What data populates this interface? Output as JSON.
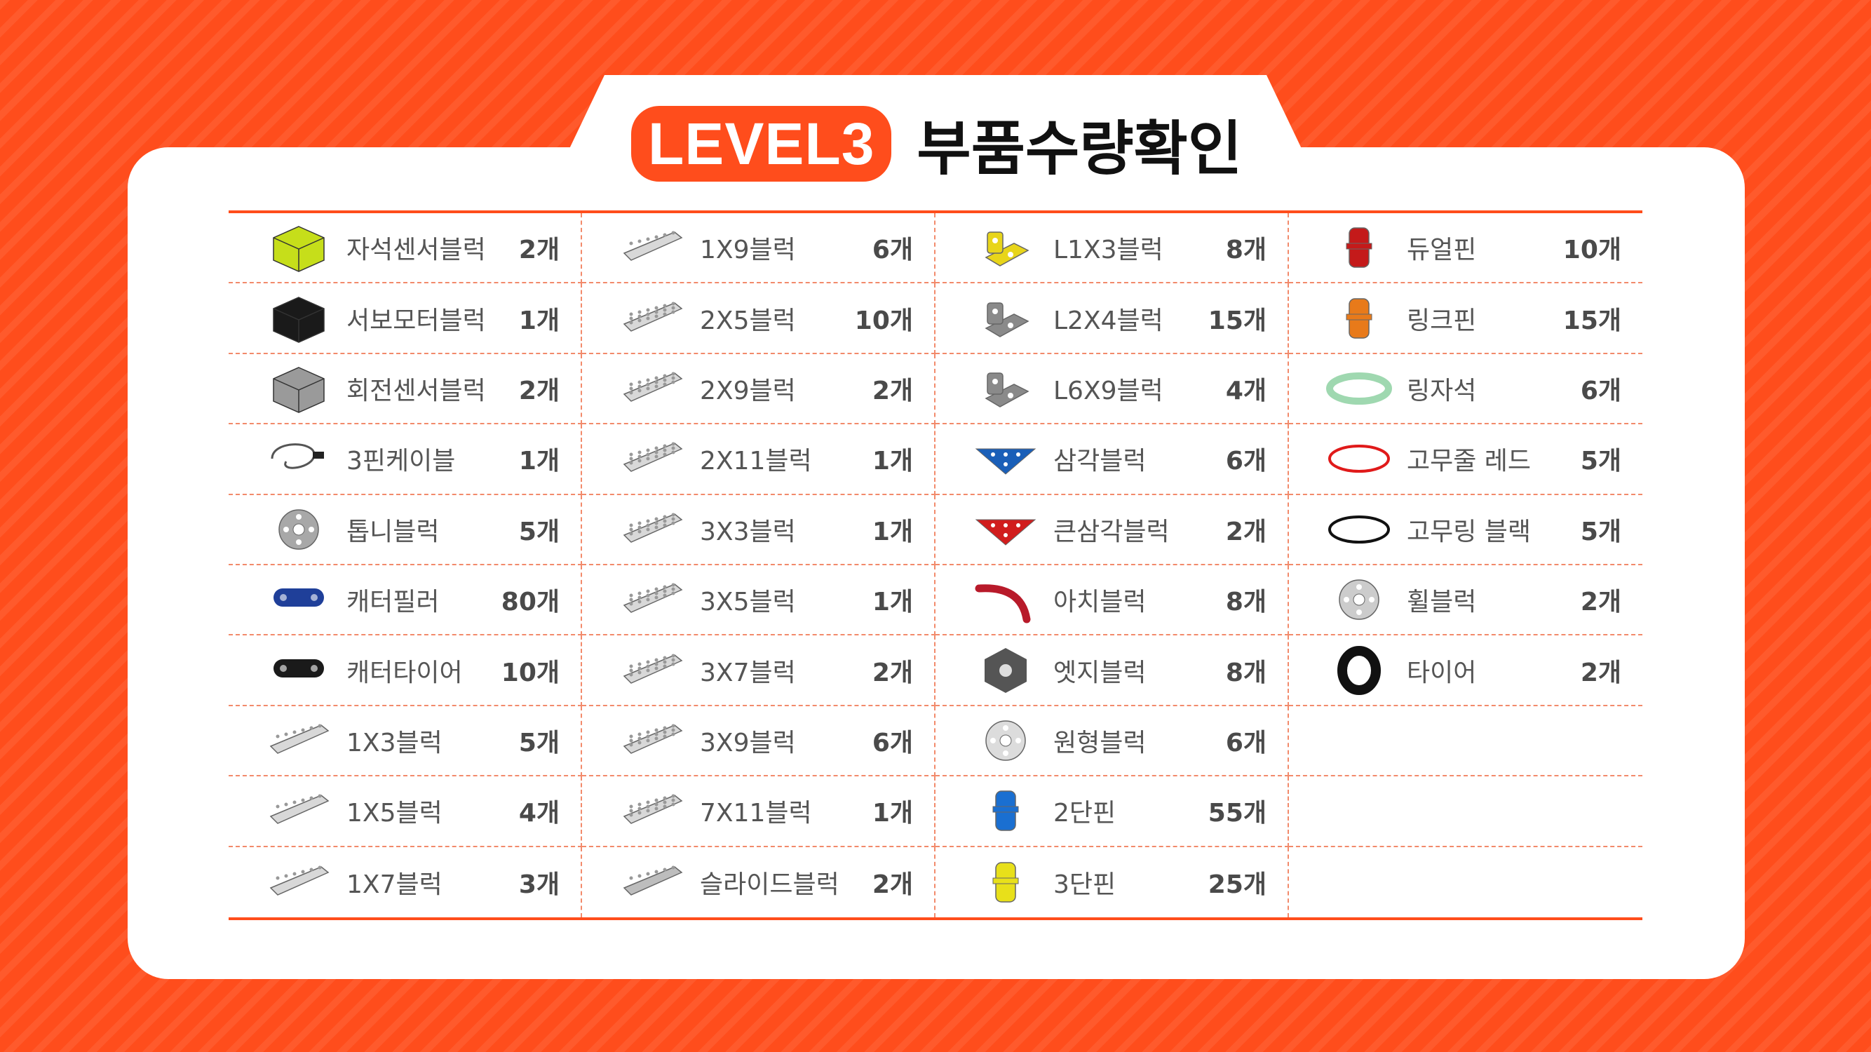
{
  "title": {
    "level": "LEVEL3",
    "text": "부품수량확인"
  },
  "columns": [
    [
      {
        "name": "자석센서블럭",
        "qty": "2개",
        "icon": "magnet-sensor-block-icon",
        "color": "#c6de1a"
      },
      {
        "name": "서보모터블럭",
        "qty": "1개",
        "icon": "servo-motor-block-icon",
        "color": "#1a1a1a"
      },
      {
        "name": "회전센서블럭",
        "qty": "2개",
        "icon": "rotation-sensor-block-icon",
        "color": "#9a9a9a"
      },
      {
        "name": "3핀케이블",
        "qty": "1개",
        "icon": "pin-cable-icon",
        "color": "#555555"
      },
      {
        "name": "톱니블럭",
        "qty": "5개",
        "icon": "gear-block-icon",
        "color": "#a8a8a8"
      },
      {
        "name": "캐터필러",
        "qty": "80개",
        "icon": "caterpillar-icon",
        "color": "#1f3f99"
      },
      {
        "name": "캐터타이어",
        "qty": "10개",
        "icon": "caterpillar-tire-icon",
        "color": "#1a1a1a"
      },
      {
        "name": "1X3블럭",
        "qty": "5개",
        "icon": "beam-1x3-icon",
        "color": "#d8d8d8"
      },
      {
        "name": "1X5블럭",
        "qty": "4개",
        "icon": "beam-1x5-icon",
        "color": "#d8d8d8"
      },
      {
        "name": "1X7블럭",
        "qty": "3개",
        "icon": "beam-1x7-icon",
        "color": "#d8d8d8"
      }
    ],
    [
      {
        "name": "1X9블럭",
        "qty": "6개",
        "icon": "beam-1x9-icon",
        "color": "#d8d8d8"
      },
      {
        "name": "2X5블럭",
        "qty": "10개",
        "icon": "plate-2x5-icon",
        "color": "#d8d8d8"
      },
      {
        "name": "2X9블럭",
        "qty": "2개",
        "icon": "plate-2x9-icon",
        "color": "#d8d8d8"
      },
      {
        "name": "2X11블럭",
        "qty": "1개",
        "icon": "plate-2x11-icon",
        "color": "#d8d8d8"
      },
      {
        "name": "3X3블럭",
        "qty": "1개",
        "icon": "plate-3x3-icon",
        "color": "#d8d8d8"
      },
      {
        "name": "3X5블럭",
        "qty": "1개",
        "icon": "plate-3x5-icon",
        "color": "#d8d8d8"
      },
      {
        "name": "3X7블럭",
        "qty": "2개",
        "icon": "plate-3x7-icon",
        "color": "#d8d8d8"
      },
      {
        "name": "3X9블럭",
        "qty": "6개",
        "icon": "plate-3x9-icon",
        "color": "#d8d8d8"
      },
      {
        "name": "7X11블럭",
        "qty": "1개",
        "icon": "plate-7x11-icon",
        "color": "#d8d8d8"
      },
      {
        "name": "슬라이드블럭",
        "qty": "2개",
        "icon": "slide-block-icon",
        "color": "#bdbdbd"
      }
    ],
    [
      {
        "name": "L1X3블럭",
        "qty": "8개",
        "icon": "l-bracket-1x3-icon",
        "color": "#e8d51a"
      },
      {
        "name": "L2X4블럭",
        "qty": "15개",
        "icon": "l-bracket-2x4-icon",
        "color": "#8a8a8a"
      },
      {
        "name": "L6X9블럭",
        "qty": "4개",
        "icon": "l-bracket-6x9-icon",
        "color": "#8a8a8a"
      },
      {
        "name": "삼각블럭",
        "qty": "6개",
        "icon": "triangle-block-icon",
        "color": "#1a5fb8"
      },
      {
        "name": "큰삼각블럭",
        "qty": "2개",
        "icon": "large-triangle-block-icon",
        "color": "#d11d1d"
      },
      {
        "name": "아치블럭",
        "qty": "8개",
        "icon": "arch-block-icon",
        "color": "#b81a2a"
      },
      {
        "name": "엣지블럭",
        "qty": "8개",
        "icon": "edge-block-icon",
        "color": "#555555"
      },
      {
        "name": "원형블럭",
        "qty": "6개",
        "icon": "round-block-icon",
        "color": "#dcdcdc"
      },
      {
        "name": "2단핀",
        "qty": "55개",
        "icon": "two-step-pin-icon",
        "color": "#1a6fd1"
      },
      {
        "name": "3단핀",
        "qty": "25개",
        "icon": "three-step-pin-icon",
        "color": "#e8e01a"
      }
    ],
    [
      {
        "name": "듀얼핀",
        "qty": "10개",
        "icon": "dual-pin-icon",
        "color": "#c41a1a"
      },
      {
        "name": "링크핀",
        "qty": "15개",
        "icon": "link-pin-icon",
        "color": "#e87a1a"
      },
      {
        "name": "링자석",
        "qty": "6개",
        "icon": "ring-magnet-icon",
        "color": "#9fd8b0"
      },
      {
        "name": "고무줄 레드",
        "qty": "5개",
        "icon": "rubber-band-red-icon",
        "color": "#e01a1a"
      },
      {
        "name": "고무링 블랙",
        "qty": "5개",
        "icon": "rubber-ring-black-icon",
        "color": "#111111"
      },
      {
        "name": "휠블럭",
        "qty": "2개",
        "icon": "wheel-block-icon",
        "color": "#cccccc"
      },
      {
        "name": "타이어",
        "qty": "2개",
        "icon": "tire-icon",
        "color": "#111111"
      },
      null,
      null,
      null
    ]
  ]
}
